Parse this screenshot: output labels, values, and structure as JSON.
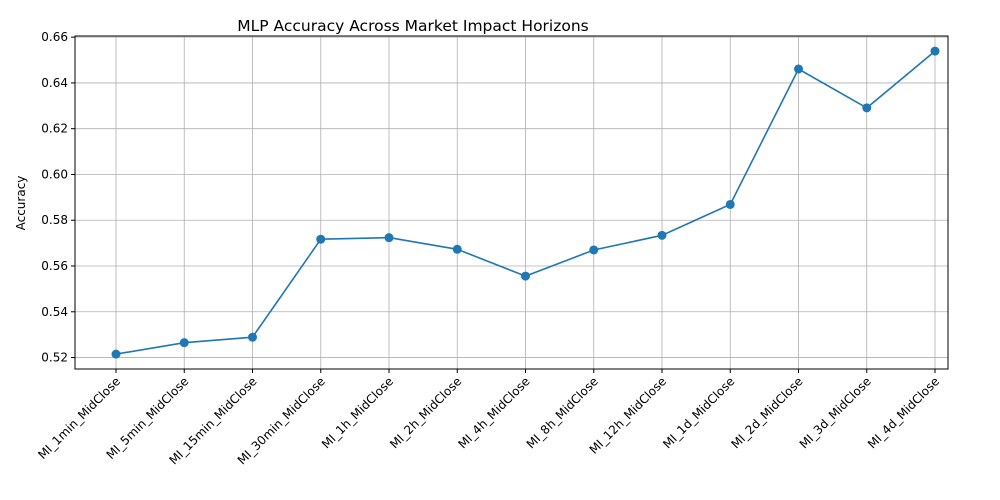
{
  "chart_data": {
    "type": "line",
    "title": "MLP Accuracy Across Market Impact Horizons",
    "xlabel": "",
    "ylabel": "Accuracy",
    "categories": [
      "MI_1min_MidClose",
      "MI_5min_MidClose",
      "MI_15min_MidClose",
      "MI_30min_MidClose",
      "MI_1h_MidClose",
      "MI_2h_MidClose",
      "MI_4h_MidClose",
      "MI_8h_MidClose",
      "MI_12h_MidClose",
      "MI_1d_MidClose",
      "MI_2d_MidClose",
      "MI_3d_MidClose",
      "MI_4d_MidClose"
    ],
    "series": [
      {
        "values": [
          0.5215,
          0.5265,
          0.5289,
          0.5717,
          0.5724,
          0.5673,
          0.5556,
          0.567,
          0.5734,
          0.5869,
          0.6461,
          0.6291,
          0.6539
        ]
      }
    ],
    "ylim": [
      0.515,
      0.6605
    ],
    "yticks": [
      0.52,
      0.54,
      0.56,
      0.58,
      0.6,
      0.62,
      0.64,
      0.66
    ],
    "ytick_labels": [
      "0.52",
      "0.54",
      "0.56",
      "0.58",
      "0.60",
      "0.62",
      "0.64",
      "0.66"
    ],
    "grid": true,
    "line_color": "#1f77b4",
    "grid_color": "#b0b0b0",
    "xtick_rotation": 45
  }
}
